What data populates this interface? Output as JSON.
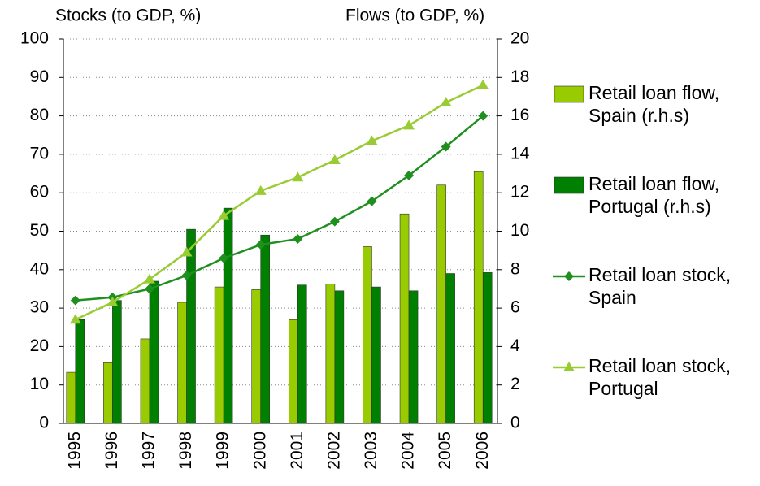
{
  "chart_data": {
    "type": "bar",
    "ylabel": "Stocks (to GDP, %)",
    "y2label": "Flows (to GDP, %)",
    "categories": [
      "1995",
      "1996",
      "1997",
      "1998",
      "1999",
      "2000",
      "2001",
      "2002",
      "2003",
      "2004",
      "2005",
      "2006"
    ],
    "ylim": [
      0,
      100
    ],
    "yticks": [
      0,
      10,
      20,
      30,
      40,
      50,
      60,
      70,
      80,
      90,
      100
    ],
    "y2lim": [
      0,
      20
    ],
    "y2ticks": [
      0,
      2,
      4,
      6,
      8,
      10,
      12,
      14,
      16,
      18,
      20
    ],
    "grid": true,
    "series": [
      {
        "name": "Retail loan flow, Spain (r.h.s)",
        "type": "bar",
        "axis": "y2",
        "color": "#99cc00",
        "values": [
          2.66,
          3.16,
          4.4,
          6.3,
          7.1,
          6.96,
          5.4,
          7.26,
          9.2,
          10.9,
          12.4,
          13.1
        ]
      },
      {
        "name": "Retail loan flow, Portugal (r.h.s)",
        "type": "bar",
        "axis": "y2",
        "color": "#008000",
        "values": [
          5.4,
          6.4,
          7.4,
          10.1,
          11.2,
          9.8,
          7.2,
          6.9,
          7.1,
          6.9,
          7.8,
          7.85
        ]
      },
      {
        "name": "Retail loan stock, Spain",
        "type": "line",
        "marker": "diamond",
        "color": "#1f8f1f",
        "values": [
          32,
          32.8,
          35,
          38.5,
          43,
          46.5,
          48,
          52.5,
          57.8,
          64.5,
          72,
          80
        ]
      },
      {
        "name": "Retail loan stock, Portugal",
        "type": "line",
        "marker": "triangle",
        "color": "#99cc33",
        "values": [
          27,
          31.5,
          37.5,
          44.5,
          54,
          60.5,
          64,
          68.5,
          73.5,
          77.5,
          83.5,
          88
        ]
      }
    ]
  }
}
